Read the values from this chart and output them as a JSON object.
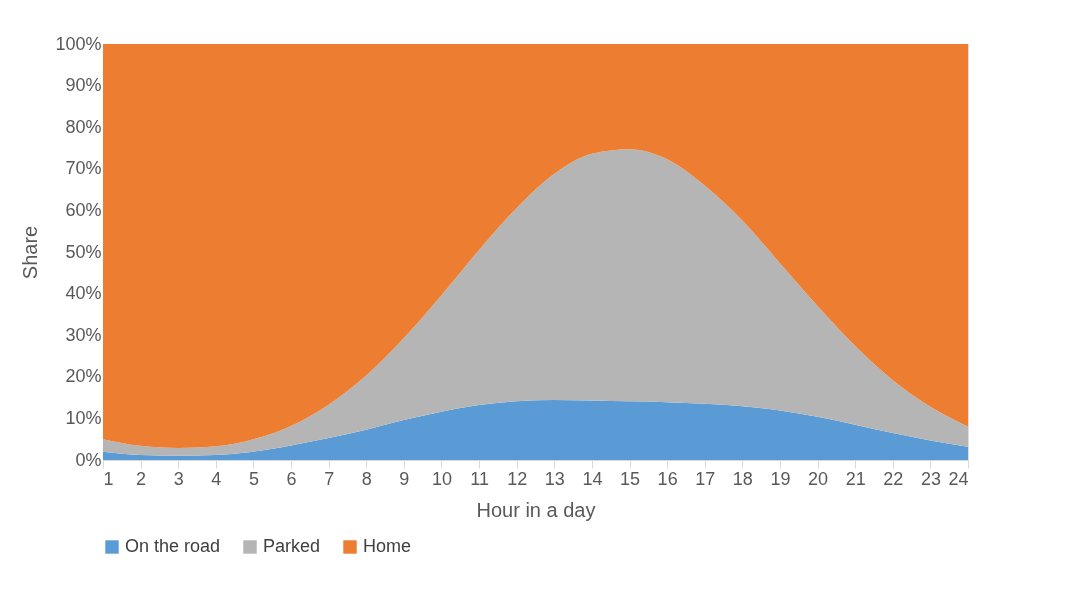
{
  "chart_data": {
    "type": "area",
    "stacked": true,
    "xlabel": "Hour in a day",
    "ylabel": "Share",
    "x": [
      1,
      2,
      3,
      4,
      5,
      6,
      7,
      8,
      9,
      10,
      11,
      12,
      13,
      14,
      15,
      16,
      17,
      18,
      19,
      20,
      21,
      22,
      23,
      24
    ],
    "series": [
      {
        "name": "On the road",
        "color": "#5b9bd5",
        "values": [
          2,
          1.2,
          1,
          1.2,
          2,
          3.5,
          5.3,
          7.3,
          9.6,
          11.6,
          13.2,
          14.1,
          14.4,
          14.3,
          14.1,
          13.9,
          13.5,
          12.9,
          11.9,
          10.4,
          8.5,
          6.5,
          4.7,
          3.2
        ]
      },
      {
        "name": "Parked",
        "color": "#b5b5b5",
        "values": [
          3,
          2.2,
          1.9,
          2.1,
          3,
          4.7,
          8,
          13,
          19.7,
          28,
          37.3,
          46.5,
          54.4,
          59.3,
          60.6,
          58.4,
          52.5,
          44.7,
          35.4,
          26.6,
          18.9,
          12.7,
          8.1,
          4.8
        ]
      },
      {
        "name": "Home",
        "color": "#ed7d31",
        "values": [
          95,
          96.6,
          97.1,
          96.7,
          95,
          91.8,
          86.7,
          79.7,
          70.7,
          60.4,
          49.5,
          39.4,
          31.2,
          26.4,
          25.3,
          27.7,
          34,
          42.4,
          52.7,
          63,
          72.6,
          80.8,
          87.2,
          92
        ]
      }
    ],
    "xlim": [
      1,
      24
    ],
    "xticks": [
      1,
      2,
      3,
      4,
      5,
      6,
      7,
      8,
      9,
      10,
      11,
      12,
      13,
      14,
      15,
      16,
      17,
      18,
      19,
      20,
      21,
      22,
      23,
      24
    ],
    "ylim": [
      0,
      100
    ],
    "yticks": [
      {
        "value": 0,
        "label": "0%"
      },
      {
        "value": 10,
        "label": "10%"
      },
      {
        "value": 20,
        "label": "20%"
      },
      {
        "value": 30,
        "label": "30%"
      },
      {
        "value": 40,
        "label": "40%"
      },
      {
        "value": 50,
        "label": "50%"
      },
      {
        "value": 60,
        "label": "60%"
      },
      {
        "value": 70,
        "label": "70%"
      },
      {
        "value": 80,
        "label": "80%"
      },
      {
        "value": 90,
        "label": "90%"
      },
      {
        "value": 100,
        "label": "100%"
      }
    ],
    "grid": false,
    "legend": "bottom"
  }
}
